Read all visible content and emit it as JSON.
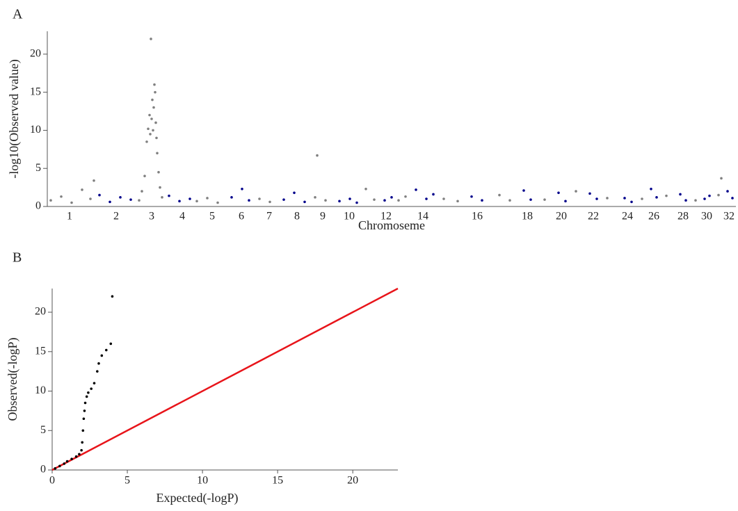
{
  "chart_data": [
    {
      "type": "scatter",
      "panel_label": "A",
      "y_label": "-log10(Observed value)",
      "x_label": "Chromoseme",
      "xlim": [
        0,
        990
      ],
      "ylim": [
        0,
        23
      ],
      "yticks": [
        0,
        5,
        10,
        15,
        20
      ],
      "xticks": [
        {
          "value": 32,
          "label": "1"
        },
        {
          "value": 99,
          "label": "2"
        },
        {
          "value": 150,
          "label": "3"
        },
        {
          "value": 194,
          "label": "4"
        },
        {
          "value": 237,
          "label": "5"
        },
        {
          "value": 279,
          "label": "6"
        },
        {
          "value": 319,
          "label": "7"
        },
        {
          "value": 359,
          "label": "8"
        },
        {
          "value": 396,
          "label": "9"
        },
        {
          "value": 434,
          "label": "10"
        },
        {
          "value": 487,
          "label": "12"
        },
        {
          "value": 540,
          "label": "14"
        },
        {
          "value": 618,
          "label": "16"
        },
        {
          "value": 690,
          "label": "18"
        },
        {
          "value": 739,
          "label": "20"
        },
        {
          "value": 785,
          "label": "22"
        },
        {
          "value": 834,
          "label": "24"
        },
        {
          "value": 872,
          "label": "26"
        },
        {
          "value": 914,
          "label": "28"
        },
        {
          "value": 948,
          "label": "30"
        },
        {
          "value": 980,
          "label": "32"
        }
      ],
      "series": [
        {
          "color": "#808080",
          "x": [
            5,
            20,
            35,
            50,
            62,
            67,
            132,
            136,
            140,
            143,
            145,
            147,
            148,
            149,
            150,
            151,
            152,
            153,
            154,
            155,
            156,
            157,
            158,
            160,
            162,
            165,
            215,
            230,
            245,
            305,
            320,
            385,
            388,
            400,
            458,
            470,
            505,
            515,
            570,
            590,
            650,
            665,
            715,
            760,
            805,
            855,
            890,
            932,
            965,
            969
          ],
          "values": [
            0.8,
            1.3,
            0.5,
            2.2,
            1.0,
            3.4,
            0.8,
            2.0,
            4.0,
            8.5,
            10.2,
            12.0,
            9.5,
            22.0,
            11.5,
            14.0,
            10.0,
            13.0,
            16.0,
            15.0,
            11.0,
            9.0,
            7.0,
            4.5,
            2.5,
            1.2,
            0.7,
            1.1,
            0.5,
            1.0,
            0.6,
            1.2,
            6.7,
            0.8,
            2.3,
            0.9,
            0.8,
            1.3,
            1.0,
            0.7,
            1.5,
            0.8,
            0.9,
            2.0,
            1.1,
            1.0,
            1.4,
            0.8,
            1.5,
            3.7
          ]
        },
        {
          "color": "#00008b",
          "x": [
            75,
            90,
            105,
            120,
            175,
            190,
            205,
            265,
            280,
            290,
            340,
            355,
            370,
            420,
            435,
            445,
            485,
            495,
            530,
            545,
            555,
            610,
            625,
            685,
            695,
            735,
            745,
            780,
            790,
            830,
            840,
            868,
            876,
            910,
            918,
            945,
            952,
            978,
            985
          ],
          "values": [
            1.5,
            0.6,
            1.2,
            0.9,
            1.4,
            0.7,
            1.0,
            1.2,
            2.3,
            0.8,
            0.9,
            1.8,
            0.6,
            0.7,
            1.0,
            0.5,
            0.8,
            1.2,
            2.2,
            1.0,
            1.6,
            1.3,
            0.8,
            2.1,
            0.9,
            1.8,
            0.7,
            1.7,
            1.0,
            1.1,
            0.6,
            2.3,
            1.2,
            1.6,
            0.8,
            1.0,
            1.4,
            2.0,
            1.1
          ]
        }
      ]
    },
    {
      "type": "qq",
      "panel_label": "B",
      "y_label": "Observed(-logP)",
      "x_label": "Expected(-logP)",
      "xlim": [
        0,
        23
      ],
      "ylim": [
        0,
        23
      ],
      "xticks": [
        0,
        5,
        10,
        15,
        20
      ],
      "yticks": [
        0,
        5,
        10,
        15,
        20
      ],
      "diagonal_color": "#e8141a",
      "series": [
        {
          "color": "#000000",
          "x": [
            0.2,
            0.5,
            0.8,
            1.0,
            1.3,
            1.6,
            1.8,
            1.95,
            2.0,
            2.05,
            2.1,
            2.15,
            2.2,
            2.3,
            2.4,
            2.6,
            2.8,
            3.0,
            3.1,
            3.3,
            3.6,
            3.9,
            4.0
          ],
          "values": [
            0.2,
            0.5,
            0.8,
            1.1,
            1.4,
            1.7,
            2.0,
            2.5,
            3.5,
            5.0,
            6.5,
            7.5,
            8.5,
            9.3,
            9.8,
            10.3,
            11.0,
            12.5,
            13.5,
            14.5,
            15.2,
            16.0,
            22.0
          ]
        }
      ]
    }
  ]
}
